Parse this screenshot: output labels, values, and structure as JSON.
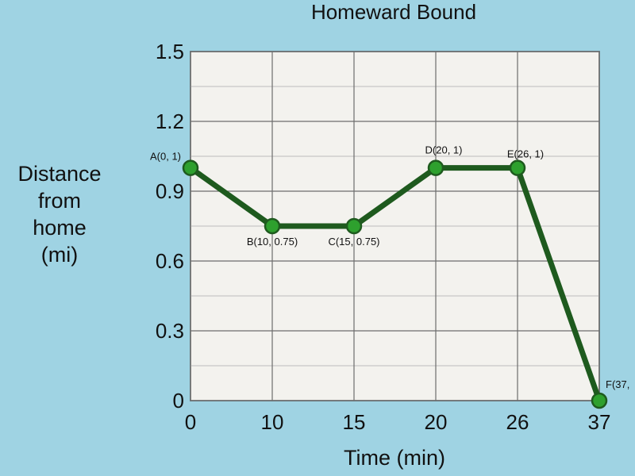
{
  "chart_data": {
    "type": "line",
    "title": "Homeward Bound",
    "xlabel": "Time (min)",
    "ylabel": [
      "Distance",
      "from",
      "home",
      "(mi)"
    ],
    "x_categories": [
      "0",
      "10",
      "15",
      "20",
      "26",
      "37"
    ],
    "y_ticks": [
      "0",
      "0.3",
      "0.6",
      "0.9",
      "1.2",
      "1.5"
    ],
    "ylim": [
      0,
      1.5
    ],
    "grid": true,
    "line_color": "#1e5a1e",
    "point_color": "#2ea02e",
    "plot_background": "#f3f2ee",
    "page_background": "#9fd3e3",
    "points": [
      {
        "x": 0,
        "y": 1,
        "label": "A(0, 1)"
      },
      {
        "x": 10,
        "y": 0.75,
        "label": "B(10, 0.75)"
      },
      {
        "x": 15,
        "y": 0.75,
        "label": "C(15, 0.75)"
      },
      {
        "x": 20,
        "y": 1,
        "label": "D(20, 1)"
      },
      {
        "x": 26,
        "y": 1,
        "label": "E(26, 1)"
      },
      {
        "x": 37,
        "y": 0,
        "label": "F(37,"
      }
    ]
  }
}
